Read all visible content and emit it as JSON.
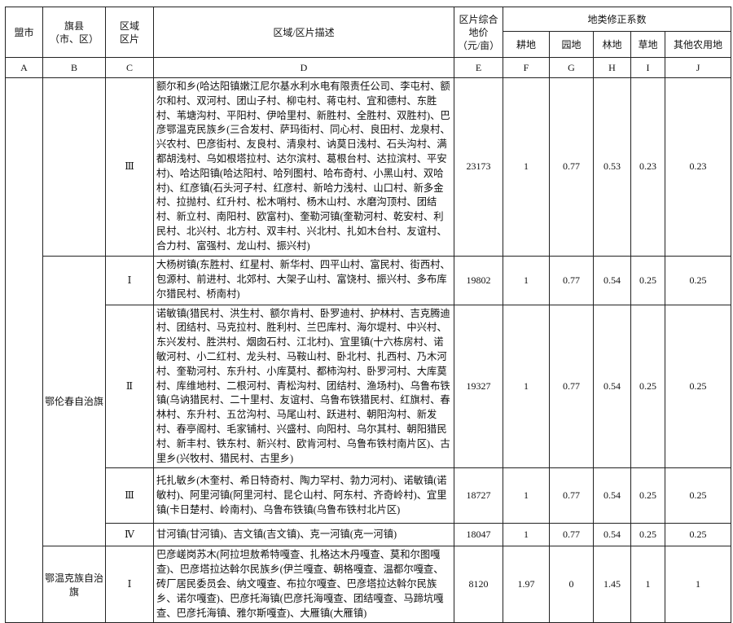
{
  "header": {
    "col_a": "盟市",
    "col_b": "旗县\n（市、区）",
    "col_b_line1": "旗县",
    "col_b_line2": "（市、区）",
    "col_c_line1": "区域",
    "col_c_line2": "区片",
    "col_d": "区域/区片描述",
    "col_e_line1": "区片综合",
    "col_e_line2": "地价",
    "col_e_line3": "（元/亩）",
    "group": "地类修正系数",
    "col_f": "耕地",
    "col_g": "园地",
    "col_h": "林地",
    "col_i": "草地",
    "col_j": "其他农用地"
  },
  "letters": [
    "A",
    "B",
    "C",
    "D",
    "E",
    "F",
    "G",
    "H",
    "I",
    "J"
  ],
  "rows": [
    {
      "city": "",
      "county": "",
      "zone": "Ⅲ",
      "desc": "额尔和乡(哈达阳镇嫩江尼尔基水利水电有限责任公司、李屯村、额尔和村、双河村、团山子村、柳屯村、蒋屯村、宜和德村、东胜村、苇塘沟村、平阳村、伊哈里村、新胜村、全胜村、双胜村)、巴彦鄂温克民族乡(三合发村、萨玛街村、同心村、良田村、龙泉村、兴农村、巴彦街村、友良村、清泉村、讷莫日浅村、石头沟村、满都胡浅村、乌如根塔拉村、达尔滨村、葛根台村、达拉滨村、平安村)、哈达阳镇(哈达阳村、哈列图村、哈布奇村、小黑山村、双哈村)、红彦镇(石头河子村、红彦村、新哈力浅村、山口村、新多金村、拉抛村、红升村、松木哨村、杨木山村、水磨沟顶村、团结村、新立村、南阳村、欧富村)、奎勒河镇(奎勒河村、乾安村、利民村、北兴村、北方村、双丰村、兴北村、扎如木台村、友谊村、合力村、富强村、龙山村、振兴村)",
      "price": "23173",
      "f": "1",
      "g": "0.77",
      "h": "0.53",
      "i": "0.23",
      "j": "0.23"
    },
    {
      "county": "鄂伦春自治旗",
      "zone": "Ⅰ",
      "desc": "大杨树镇(东胜村、红星村、新华村、四平山村、富民村、街西村、包源村、前进村、北郊村、大架子山村、富饶村、振兴村、多布库尔猎民村、桥南村)",
      "price": "19802",
      "f": "1",
      "g": "0.77",
      "h": "0.54",
      "i": "0.25",
      "j": "0.25"
    },
    {
      "zone": "Ⅱ",
      "desc": "诺敏镇(猎民村、洪生村、额尔肯村、卧罗迪村、护林村、吉克腾迪村、团结村、马克拉村、胜利村、兰巴库村、海尔堤村、中兴村、东兴发村、胜洪村、烟囱石村、江北村)、宜里镇(十六栋房村、诺敏河村、小二红村、龙头村、马鞍山村、卧北村、扎西村、乃木河村、奎勒河村、东升村、小库莫村、都柿沟村、卧罗河村、大库莫村、库维地村、二根河村、青松沟村、团结村、渔场村)、乌鲁布铁镇(乌讷猎民村、二十里村、友谊村、乌鲁布铁猎民村、红旗村、春林村、东升村、五岔沟村、马尾山村、跃进村、朝阳沟村、新发村、春亭阁村、毛家铺村、兴盛村、向阳村、乌尔其村、朝阳猎民村、新丰村、铁东村、新兴村、欧肯河村、乌鲁布铁村南片区)、古里乡(兴牧村、猎民村、古里乡)",
      "price": "19327",
      "f": "1",
      "g": "0.77",
      "h": "0.54",
      "i": "0.25",
      "j": "0.25"
    },
    {
      "zone": "Ⅲ",
      "desc": "托扎敏乡(木奎村、希日特奇村、陶力罕村、勃力河村)、诺敏镇(诺敏村)、阿里河镇(阿里河村、昆仑山村、阿东村、齐奇岭村)、宜里镇(卡日楚村、岭南村)、乌鲁布铁镇(乌鲁布铁村北片区)",
      "price": "18727",
      "f": "1",
      "g": "0.77",
      "h": "0.54",
      "i": "0.25",
      "j": "0.25"
    },
    {
      "zone": "Ⅳ",
      "desc": "甘河镇(甘河镇)、吉文镇(吉文镇)、克一河镇(克一河镇)",
      "price": "18047",
      "f": "1",
      "g": "0.77",
      "h": "0.54",
      "i": "0.25",
      "j": "0.25"
    },
    {
      "county": "鄂温克族自治旗",
      "zone": "Ⅰ",
      "desc": "巴彦嵯岗苏木(阿拉坦敖希特嘎查、扎格达木丹嘎查、莫和尔图嘎查)、巴彦塔拉达斡尔民族乡(伊兰嘎查、朝格嘎查、温都尔嘎查、砖厂居民委员会、纳文嘎查、布拉尔嘎查、巴彦塔拉达斡尔民族乡、诺尔嘎查)、巴彦托海镇(巴彦托海嘎查、团结嘎查、马蹄坑嘎查、巴彦托海镇、雅尔斯嘎查)、大雁镇(大雁镇)",
      "price": "8120",
      "f": "1.97",
      "g": "0",
      "h": "1.45",
      "i": "1",
      "j": "1"
    }
  ]
}
